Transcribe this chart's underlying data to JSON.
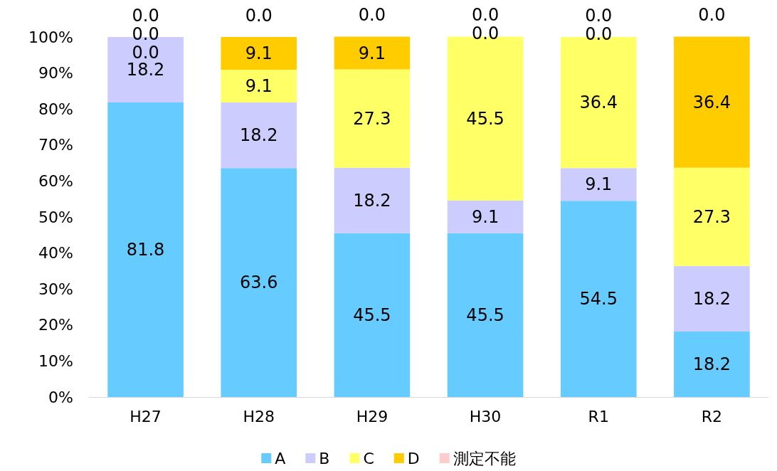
{
  "chart_data": {
    "type": "bar",
    "stacked": true,
    "categories": [
      "H27",
      "H28",
      "H29",
      "H30",
      "R1",
      "R2"
    ],
    "series": [
      {
        "name": "A",
        "color": "#66ccff",
        "values": [
          81.8,
          63.6,
          45.5,
          45.5,
          54.5,
          18.2
        ],
        "value_labels": [
          "81.8",
          "63.6",
          "45.5",
          "45.5",
          "54.5",
          "18.2"
        ]
      },
      {
        "name": "B",
        "color": "#ccccff",
        "values": [
          18.2,
          18.2,
          18.2,
          9.1,
          9.1,
          18.2
        ],
        "value_labels": [
          "18.2",
          "18.2",
          "18.2",
          "9.1",
          "9.1",
          "18.2"
        ]
      },
      {
        "name": "C",
        "color": "#ffff66",
        "values": [
          0,
          9.1,
          27.3,
          45.5,
          36.4,
          27.3
        ],
        "value_labels": [
          "0.0",
          "9.1",
          "27.3",
          "45.5",
          "36.4",
          "27.3"
        ]
      },
      {
        "name": "D",
        "color": "#ffcc00",
        "values": [
          0,
          9.1,
          9.1,
          0,
          0,
          36.4
        ],
        "value_labels": [
          "0.0",
          "9.1",
          "9.1",
          "0.0",
          "0.0",
          "36.4"
        ]
      },
      {
        "name": "測定不能",
        "color": "#ffcccc",
        "values": [
          0,
          0,
          0,
          0,
          0,
          0
        ],
        "value_labels": [
          "0.0",
          "0.0",
          "0.0",
          "0.0",
          "0.0",
          "0.0"
        ]
      }
    ],
    "ylim": [
      0,
      100
    ],
    "yticks": [
      {
        "value": 0,
        "label": "0%"
      },
      {
        "value": 10,
        "label": "10%"
      },
      {
        "value": 20,
        "label": "20%"
      },
      {
        "value": 30,
        "label": "30%"
      },
      {
        "value": 40,
        "label": "40%"
      },
      {
        "value": 50,
        "label": "50%"
      },
      {
        "value": 60,
        "label": "60%"
      },
      {
        "value": 70,
        "label": "70%"
      },
      {
        "value": 80,
        "label": "80%"
      },
      {
        "value": 90,
        "label": "90%"
      },
      {
        "value": 100,
        "label": "100%"
      }
    ],
    "grid": false,
    "legend": "bottom"
  }
}
